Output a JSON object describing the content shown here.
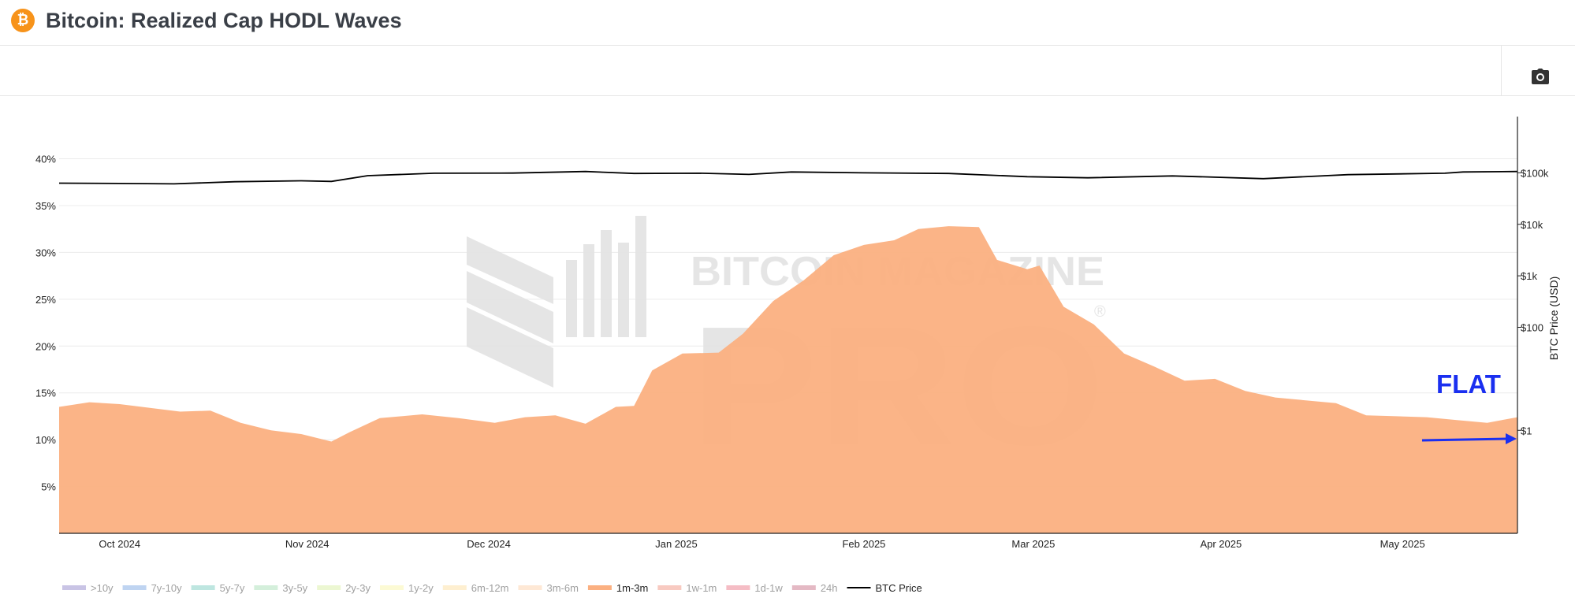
{
  "header": {
    "logo_glyph": "₿",
    "logo_icon": "bitcoin-logo-icon",
    "title": "Bitcoin: Realized Cap HODL Waves"
  },
  "toolbar": {
    "camera_icon": "camera-icon"
  },
  "watermark": {
    "line1": "BITCOIN MAGAZINE",
    "line2": "PRO",
    "registered": "®"
  },
  "annotation": {
    "text": "FLAT",
    "color": "#1a2ff0"
  },
  "colors": {
    "area_1m_3m": "#fbb081",
    "btc_price": "#000000",
    "annotation": "#1a2ff0",
    "bitcoin_orange": "#f7931a"
  },
  "chart_data": {
    "type": "area",
    "title": "Bitcoin: Realized Cap HODL Waves",
    "x_ticks": [
      "Oct 2024",
      "Nov 2024",
      "Dec 2024",
      "Jan 2025",
      "Feb 2025",
      "Mar 2025",
      "Apr 2025",
      "May 2025"
    ],
    "x_range": [
      "2024-09-21",
      "2025-05-20"
    ],
    "y_left": {
      "label": "",
      "ticks": [
        "5%",
        "10%",
        "15%",
        "20%",
        "25%",
        "30%",
        "35%",
        "40%"
      ],
      "range": [
        0,
        44
      ]
    },
    "y_right": {
      "label": "BTC Price (USD)",
      "scale": "log",
      "ticks": [
        "$1",
        "$100",
        "$1k",
        "$10k",
        "$100k"
      ],
      "range": [
        0.01,
        1000000
      ]
    },
    "grid": true,
    "legend_position": "bottom",
    "legend": [
      {
        "name": ">10y",
        "color": "#b7b0dc",
        "active": false
      },
      {
        "name": "7y-10y",
        "color": "#a9c5ec",
        "active": false
      },
      {
        "name": "5y-7y",
        "color": "#a8ded6",
        "active": false
      },
      {
        "name": "3y-5y",
        "color": "#c5e9cf",
        "active": false
      },
      {
        "name": "2y-3y",
        "color": "#e6f4c3",
        "active": false
      },
      {
        "name": "1y-2y",
        "color": "#fbf8c6",
        "active": false
      },
      {
        "name": "6m-12m",
        "color": "#fdeac0",
        "active": false
      },
      {
        "name": "3m-6m",
        "color": "#fde0c7",
        "active": false
      },
      {
        "name": "1m-3m",
        "color": "#fbb081",
        "active": true
      },
      {
        "name": "1w-1m",
        "color": "#f6b8ac",
        "active": false
      },
      {
        "name": "1d-1w",
        "color": "#f2a7b2",
        "active": false
      },
      {
        "name": "24h",
        "color": "#dba2b0",
        "active": false
      },
      {
        "name": "BTC Price",
        "color": "#000000",
        "active": true,
        "kind": "line"
      }
    ],
    "series": [
      {
        "name": "1m-3m",
        "axis": "left",
        "points": [
          [
            "2024-09-21",
            13.5
          ],
          [
            "2024-09-26",
            14.0
          ],
          [
            "2024-10-01",
            13.8
          ],
          [
            "2024-10-06",
            13.4
          ],
          [
            "2024-10-11",
            13.0
          ],
          [
            "2024-10-16",
            13.1
          ],
          [
            "2024-10-21",
            11.8
          ],
          [
            "2024-10-26",
            11.0
          ],
          [
            "2024-10-31",
            10.6
          ],
          [
            "2024-11-05",
            9.8
          ],
          [
            "2024-11-08",
            10.8
          ],
          [
            "2024-11-13",
            12.3
          ],
          [
            "2024-11-20",
            12.7
          ],
          [
            "2024-11-26",
            12.3
          ],
          [
            "2024-12-02",
            11.8
          ],
          [
            "2024-12-07",
            12.4
          ],
          [
            "2024-12-12",
            12.6
          ],
          [
            "2024-12-17",
            11.7
          ],
          [
            "2024-12-22",
            13.5
          ],
          [
            "2024-12-25",
            13.6
          ],
          [
            "2024-12-28",
            17.4
          ],
          [
            "2025-01-02",
            19.2
          ],
          [
            "2025-01-08",
            19.3
          ],
          [
            "2025-01-12",
            21.3
          ],
          [
            "2025-01-17",
            24.8
          ],
          [
            "2025-01-22",
            27.0
          ],
          [
            "2025-01-27",
            29.7
          ],
          [
            "2025-02-01",
            30.8
          ],
          [
            "2025-02-06",
            31.3
          ],
          [
            "2025-02-10",
            32.5
          ],
          [
            "2025-02-15",
            32.8
          ],
          [
            "2025-02-20",
            32.7
          ],
          [
            "2025-02-23",
            29.2
          ],
          [
            "2025-02-28",
            28.2
          ],
          [
            "2025-03-02",
            28.6
          ],
          [
            "2025-03-06",
            24.2
          ],
          [
            "2025-03-11",
            22.3
          ],
          [
            "2025-03-16",
            19.2
          ],
          [
            "2025-03-21",
            17.8
          ],
          [
            "2025-03-26",
            16.3
          ],
          [
            "2025-03-31",
            16.5
          ],
          [
            "2025-04-05",
            15.2
          ],
          [
            "2025-04-10",
            14.5
          ],
          [
            "2025-04-15",
            14.2
          ],
          [
            "2025-04-20",
            13.9
          ],
          [
            "2025-04-25",
            12.6
          ],
          [
            "2025-04-30",
            12.5
          ],
          [
            "2025-05-05",
            12.4
          ],
          [
            "2025-05-10",
            12.1
          ],
          [
            "2025-05-15",
            11.8
          ],
          [
            "2025-05-20",
            12.4
          ]
        ]
      },
      {
        "name": "BTC Price",
        "axis": "right",
        "points": [
          [
            "2024-09-21",
            63000
          ],
          [
            "2024-10-01",
            62000
          ],
          [
            "2024-10-10",
            61000
          ],
          [
            "2024-10-20",
            67000
          ],
          [
            "2024-10-31",
            70000
          ],
          [
            "2024-11-05",
            68000
          ],
          [
            "2024-11-11",
            88000
          ],
          [
            "2024-11-22",
            98000
          ],
          [
            "2024-12-05",
            99000
          ],
          [
            "2024-12-17",
            106000
          ],
          [
            "2024-12-25",
            97000
          ],
          [
            "2025-01-05",
            98000
          ],
          [
            "2025-01-13",
            93000
          ],
          [
            "2025-01-20",
            104000
          ],
          [
            "2025-02-01",
            100000
          ],
          [
            "2025-02-15",
            97000
          ],
          [
            "2025-02-28",
            84000
          ],
          [
            "2025-03-10",
            80000
          ],
          [
            "2025-03-24",
            87000
          ],
          [
            "2025-04-08",
            77000
          ],
          [
            "2025-04-22",
            92000
          ],
          [
            "2025-05-08",
            98000
          ],
          [
            "2025-05-11",
            104000
          ],
          [
            "2025-05-20",
            106000
          ]
        ]
      }
    ]
  }
}
